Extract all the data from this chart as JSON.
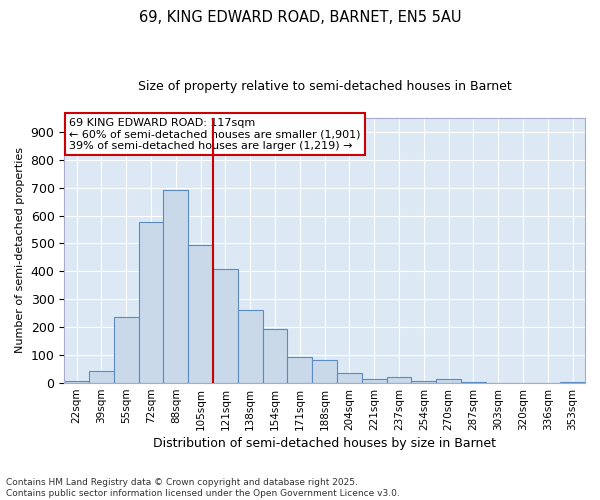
{
  "title1": "69, KING EDWARD ROAD, BARNET, EN5 5AU",
  "title2": "Size of property relative to semi-detached houses in Barnet",
  "xlabel": "Distribution of semi-detached houses by size in Barnet",
  "ylabel": "Number of semi-detached properties",
  "bar_labels": [
    "22sqm",
    "39sqm",
    "55sqm",
    "72sqm",
    "88sqm",
    "105sqm",
    "121sqm",
    "138sqm",
    "154sqm",
    "171sqm",
    "188sqm",
    "204sqm",
    "221sqm",
    "237sqm",
    "254sqm",
    "270sqm",
    "287sqm",
    "303sqm",
    "320sqm",
    "336sqm",
    "353sqm"
  ],
  "bar_values": [
    8,
    43,
    238,
    575,
    693,
    493,
    410,
    263,
    193,
    93,
    82,
    37,
    15,
    20,
    8,
    14,
    3,
    0,
    0,
    0,
    3
  ],
  "bar_color": "#c9d9ea",
  "bar_edge_color": "#5b8bbf",
  "background_color": "#dce9f5",
  "grid_color": "#ffffff",
  "vline_x_index": 6,
  "vline_color": "#cc0000",
  "annotation_title": "69 KING EDWARD ROAD: 117sqm",
  "annotation_line1": "← 60% of semi-detached houses are smaller (1,901)",
  "annotation_line2": "39% of semi-detached houses are larger (1,219) →",
  "annotation_box_color": "#cc0000",
  "ylim": [
    0,
    950
  ],
  "yticks": [
    0,
    100,
    200,
    300,
    400,
    500,
    600,
    700,
    800,
    900
  ],
  "footer_line1": "Contains HM Land Registry data © Crown copyright and database right 2025.",
  "footer_line2": "Contains public sector information licensed under the Open Government Licence v3.0."
}
